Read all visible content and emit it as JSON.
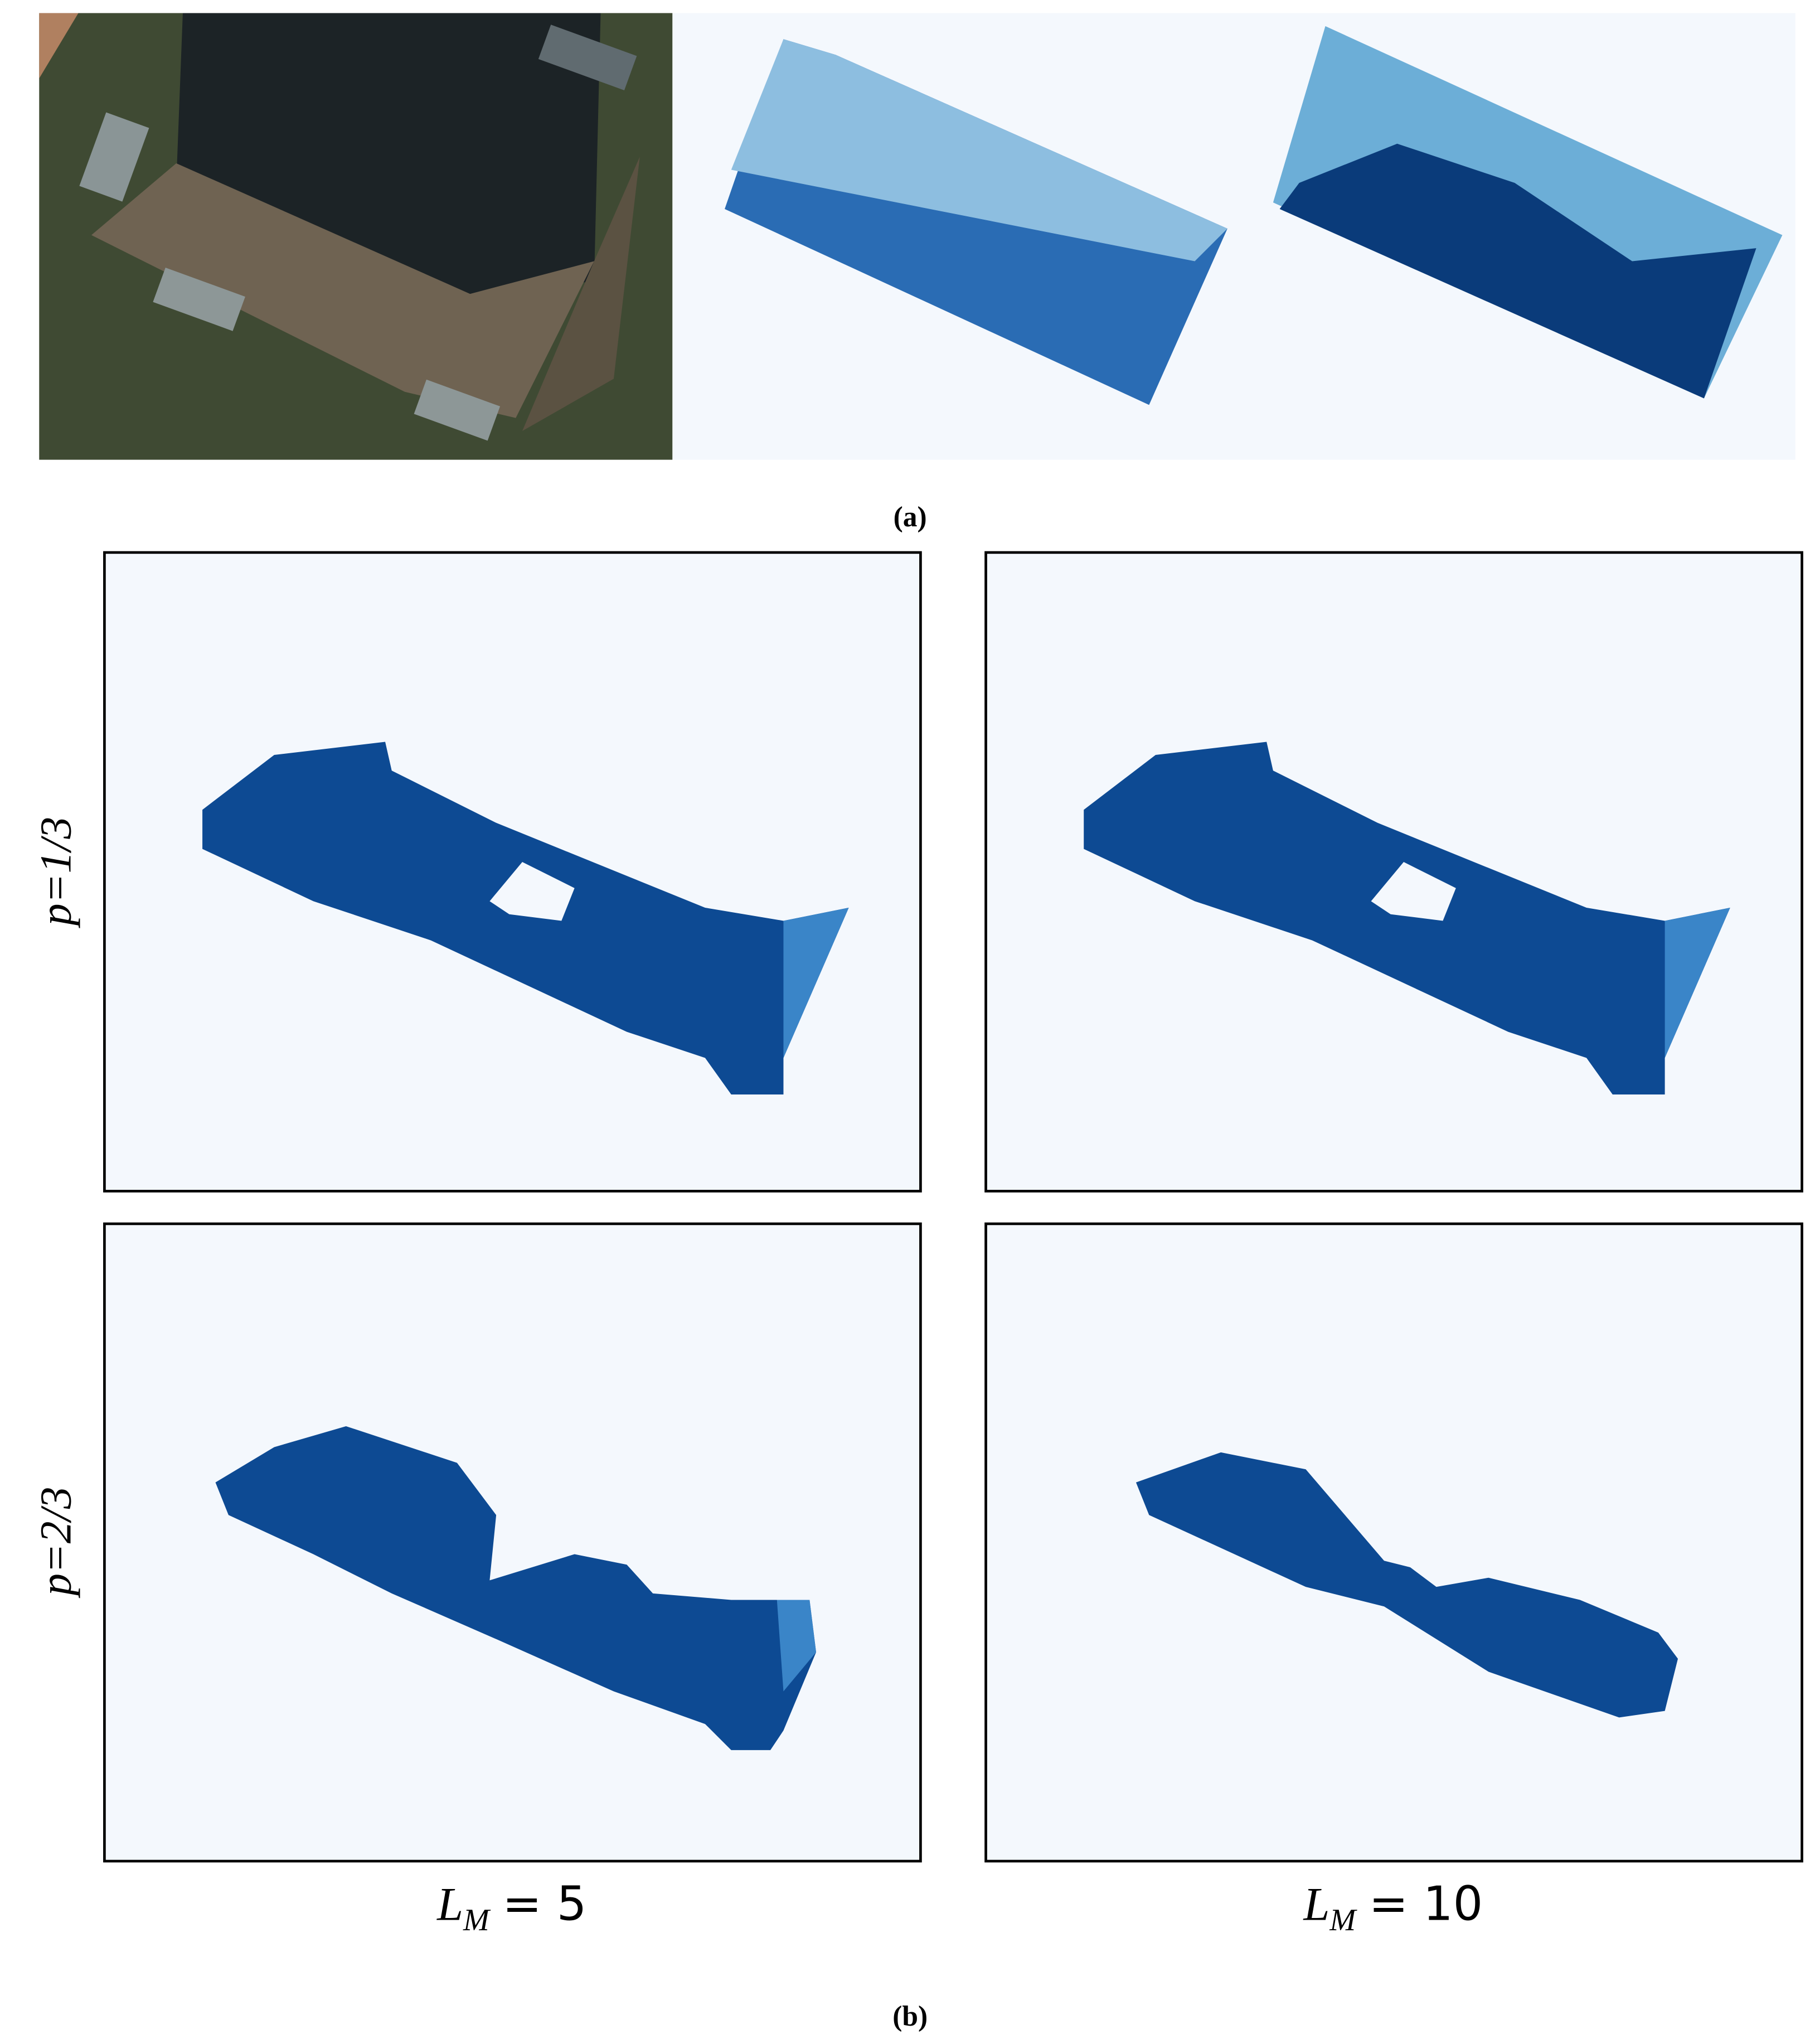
{
  "figure": {
    "panel_a": {
      "label": "(a)"
    },
    "panel_b": {
      "label": "(b)",
      "row_labels": [
        "p=1/3",
        "p=2/3"
      ],
      "column_labels": [
        {
          "symbol": "L",
          "subscript": "M",
          "rest": "= 5"
        },
        {
          "symbol": "L",
          "subscript": "M",
          "rest": "= 10"
        }
      ]
    }
  }
}
